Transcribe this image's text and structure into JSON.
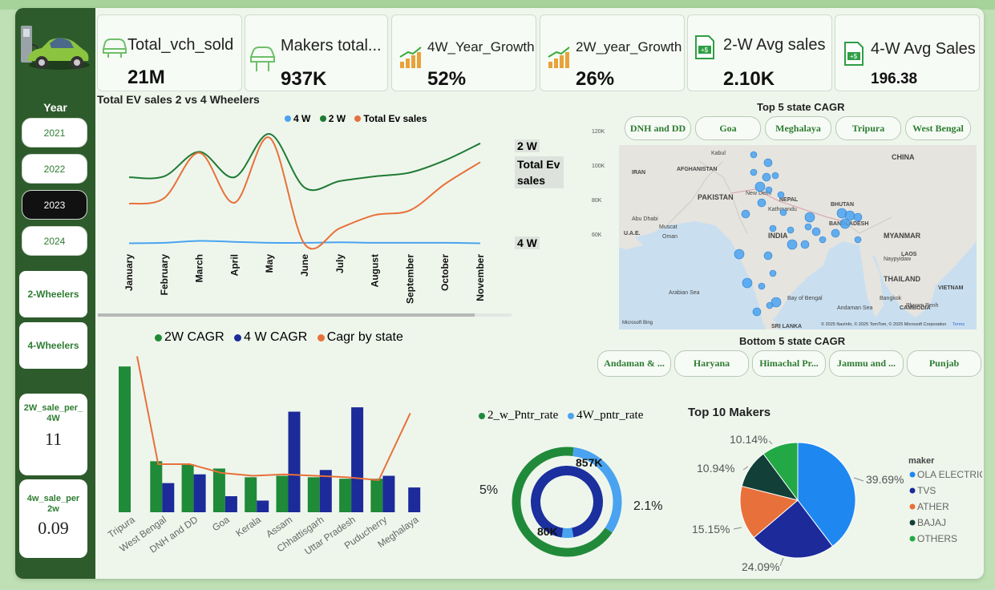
{
  "sidebar": {
    "year_label": "Year",
    "years": [
      {
        "label": "2021",
        "selected": false
      },
      {
        "label": "2022",
        "selected": false
      },
      {
        "label": "2023",
        "selected": true
      },
      {
        "label": "2024",
        "selected": false
      }
    ],
    "two_wheelers_label": "2-Wheelers",
    "four_wheelers_label": "4-Wheelers",
    "ratio_2w": {
      "label": "2W_sale_per_4W",
      "value": "11"
    },
    "ratio_4w": {
      "label": "4w_sale_per 2w",
      "value": "0.09"
    }
  },
  "kpis": {
    "total_vch_sold": {
      "label": "Total_vch_sold",
      "value": "21M"
    },
    "makers_total": {
      "label": "Makers total...",
      "value": "937K"
    },
    "w4_growth": {
      "label": "4W_Year_Growth",
      "value": "52%"
    },
    "w2_growth": {
      "label": "2W_year_Growth",
      "value": "26%"
    },
    "w2_avg": {
      "label": "2-W Avg sales",
      "value": "2.10K"
    },
    "w4_avg": {
      "label": "4-W Avg Sales",
      "value": "196.38"
    }
  },
  "line_chart": {
    "title": "Total EV sales 2 vs 4 Wheelers",
    "legend": [
      "4 W",
      "2 W",
      "Total Ev sales"
    ],
    "end_labels": {
      "two_w": "2 W",
      "total": "Total Ev\nsales",
      "four_w": "4 W"
    }
  },
  "map": {
    "title": "Top 5 state CAGR",
    "top_states": [
      "DNH and DD",
      "Goa",
      "Meghalaya",
      "Tripura",
      "West Bengal"
    ],
    "bottom_title": "Bottom 5 state CAGR",
    "bottom_states": [
      "Andaman & ...",
      "Haryana",
      "Himachal Pr...",
      "Jammu and ...",
      "Punjab"
    ],
    "scale_labels": [
      "120K",
      "100K",
      "80K",
      "60K"
    ],
    "country_labels": [
      "Kabul",
      "AFGHANISTAN",
      "IRAN",
      "PAKISTAN",
      "CHINA",
      "New Delhi",
      "NEPAL",
      "Kathmandu",
      "BHUTAN",
      "BANGLADESH",
      "INDIA",
      "Abu Dhabi",
      "Muscat",
      "U.A.E.",
      "Oman",
      "MYANMAR",
      "Naypyidaw",
      "LAOS",
      "THAILAND",
      "Bangkok",
      "VIETNAM",
      "CAMBODIA",
      "Phnom Penh",
      "Arabian Sea",
      "Bay of Bengal",
      "Andaman Sea",
      "SRI LANKA"
    ],
    "attribution": "© 2025 NavInfo, © 2025 TomTom, © 2025 Microsoft Corporation",
    "terms": "Terms",
    "ms_logo": "Microsoft Bing"
  },
  "donut": {
    "legend": [
      "2_w_Pntr_rate",
      "4W_pntr_rate"
    ],
    "labels": {
      "left_pct": "5%",
      "right_pct": "2.1%",
      "top_val": "857K",
      "bottom_val": "80K"
    },
    "colors": {
      "two_w": "#218a3a",
      "four_w": "#4aa3f0",
      "inner": "#1b2f9e"
    }
  },
  "pie": {
    "title": "Top 10 Makers",
    "legend_title": "maker",
    "labels": [
      "39.69%",
      "24.09%",
      "15.15%",
      "10.94%",
      "10.14%"
    ]
  },
  "chart_data": [
    {
      "type": "line",
      "title": "Total EV sales 2 vs 4 Wheelers",
      "categories": [
        "January",
        "February",
        "March",
        "April",
        "May",
        "June",
        "July",
        "August",
        "September",
        "October",
        "November"
      ],
      "series": [
        {
          "name": "4 W",
          "color": "#4aa3f0",
          "values": [
            0.3,
            0.35,
            0.55,
            0.45,
            0.35,
            0.35,
            0.4,
            0.35,
            0.35,
            0.35,
            0.3
          ]
        },
        {
          "name": "2 W",
          "color": "#1f7a34",
          "values": [
            7.3,
            7.4,
            10.0,
            7.3,
            11.9,
            6.2,
            6.9,
            7.4,
            7.8,
            9.1,
            10.9
          ]
        },
        {
          "name": "Total Ev sales",
          "color": "#e8703a",
          "values": [
            4.5,
            5.1,
            9.9,
            4.6,
            11.5,
            0.2,
            1.9,
            3.3,
            3.8,
            6.6,
            8.9
          ]
        }
      ],
      "ylim": [
        0,
        12.5
      ]
    },
    {
      "type": "bar",
      "categories": [
        "Tripura",
        "West Bengal",
        "DNH and DD",
        "Goa",
        "Kerala",
        "Assam",
        "Chhattisgarh",
        "Uttar Pradesh",
        "Puducherry",
        "Meghalaya"
      ],
      "series": [
        {
          "name": "2W CAGR",
          "color": "#1f8a37",
          "values": [
            100,
            35,
            33,
            30,
            24,
            25,
            24,
            23,
            23,
            null
          ]
        },
        {
          "name": "4 W CAGR",
          "color": "#1c2a9a",
          "values": [
            null,
            20,
            26,
            11,
            8,
            69,
            29,
            72,
            25,
            17
          ]
        },
        {
          "name": "Cagr by state",
          "color": "#e8703a",
          "type": "line",
          "values": [
            107,
            33,
            33,
            27,
            25,
            26,
            25,
            24,
            22,
            68
          ]
        }
      ],
      "ylim": [
        0,
        110
      ]
    },
    {
      "type": "donut",
      "series": [
        {
          "name": "2_w_Pntr_rate",
          "values": [
            {
              "label": "2W",
              "value": 95
            },
            {
              "label": "4W",
              "value": 5
            }
          ]
        },
        {
          "name": "4W_pntr_rate",
          "values": [
            {
              "label": "2W",
              "value": 97.9
            },
            {
              "label": "4W",
              "value": 2.1
            }
          ]
        }
      ]
    },
    {
      "type": "pie",
      "title": "Top 10 Makers",
      "legend_title": "maker",
      "slices": [
        {
          "label": "OLA ELECTRIC",
          "value": 39.69,
          "color": "#1e88f0"
        },
        {
          "label": "TVS",
          "value": 24.09,
          "color": "#1c2a9a"
        },
        {
          "label": "ATHER",
          "value": 15.15,
          "color": "#e8703a"
        },
        {
          "label": "BAJAJ",
          "value": 10.94,
          "color": "#123f38"
        },
        {
          "label": "OTHERS",
          "value": 10.14,
          "color": "#22a845"
        }
      ]
    }
  ]
}
